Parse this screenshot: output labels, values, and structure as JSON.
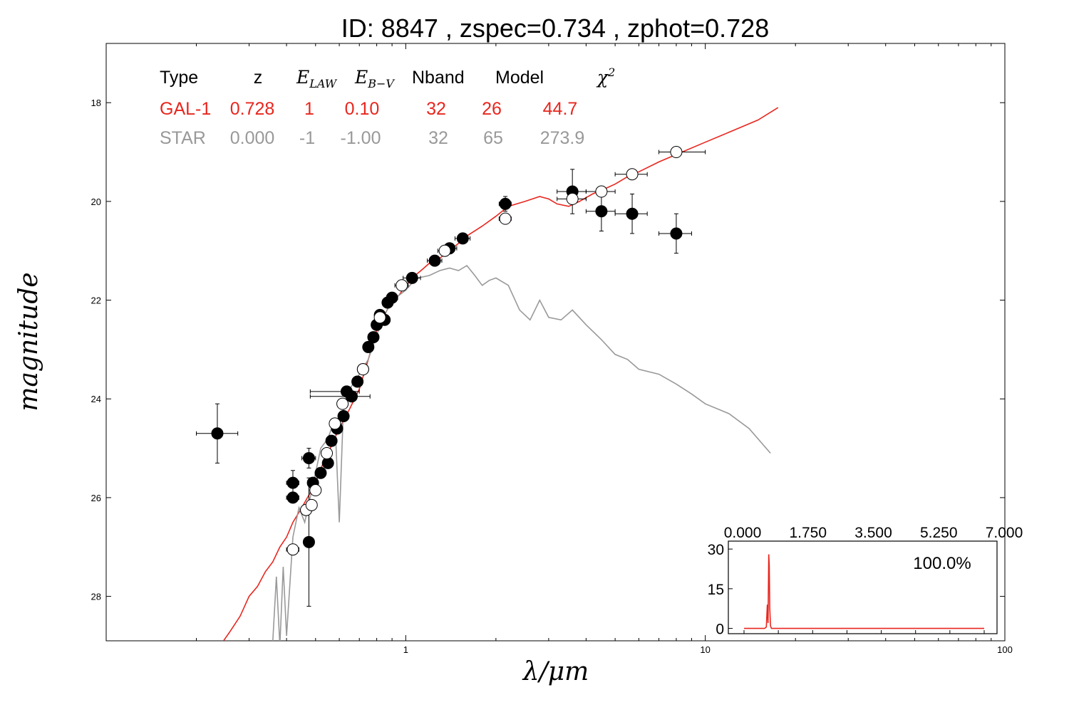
{
  "chart_data": {
    "type": "scatter",
    "title": "ID:  8847  , zspec=0.734 , zphot=0.728",
    "xlabel": "λ/μm",
    "ylabel": "magnitude",
    "xscale": "log",
    "xlim": [
      0.1,
      100
    ],
    "ylim": [
      28.9,
      16.8
    ],
    "y_inverted": true,
    "xticks": [
      1,
      10,
      100
    ],
    "xtick_labels": [
      "1",
      "10",
      "100"
    ],
    "yticks": [
      18,
      20,
      22,
      24,
      26,
      28
    ],
    "ytick_labels": [
      "18",
      "20",
      "22",
      "24",
      "26",
      "28"
    ],
    "table": {
      "headers": [
        "Type",
        "z",
        "E_LAW",
        "E_B−V",
        "Nband",
        "Model",
        "χ²"
      ],
      "rows": [
        {
          "type": "GAL-1",
          "z": "0.728",
          "elaw": "1",
          "ebv": "0.10",
          "nband": "32",
          "model": "26",
          "chi2": "44.7",
          "color": "#e8261e"
        },
        {
          "type": "STAR",
          "z": "0.000",
          "elaw": "-1",
          "ebv": "-1.00",
          "nband": "32",
          "model": "65",
          "chi2": "273.9",
          "color": "#999999"
        }
      ]
    },
    "series": [
      {
        "name": "GAL-1",
        "kind": "line",
        "color": "#e8261e",
        "x": [
          0.24,
          0.26,
          0.28,
          0.3,
          0.32,
          0.34,
          0.36,
          0.38,
          0.4,
          0.42,
          0.45,
          0.48,
          0.5,
          0.53,
          0.56,
          0.6,
          0.65,
          0.7,
          0.75,
          0.8,
          0.85,
          0.9,
          0.95,
          1.0,
          1.05,
          1.1,
          1.15,
          1.2,
          1.3,
          1.4,
          1.5,
          1.6,
          1.8,
          2.0,
          2.2,
          2.5,
          2.8,
          3.0,
          3.2,
          3.5,
          3.8,
          4.2,
          4.6,
          5.0,
          5.5,
          6.0,
          7.0,
          8.0,
          10.0,
          12.0,
          15.0,
          17.5
        ],
        "y": [
          29.0,
          28.7,
          28.4,
          28.0,
          27.8,
          27.5,
          27.3,
          27.0,
          26.8,
          26.5,
          26.2,
          25.9,
          25.7,
          25.3,
          25.0,
          24.6,
          24.2,
          23.8,
          23.2,
          22.6,
          22.3,
          22.0,
          21.9,
          21.7,
          21.55,
          21.45,
          21.35,
          21.25,
          21.15,
          21.0,
          20.85,
          20.7,
          20.5,
          20.3,
          20.1,
          20.0,
          19.9,
          19.95,
          20.05,
          20.1,
          20.0,
          19.85,
          19.75,
          19.65,
          19.5,
          19.4,
          19.2,
          19.05,
          18.8,
          18.6,
          18.35,
          18.1
        ]
      },
      {
        "name": "STAR",
        "kind": "line",
        "color": "#999999",
        "x": [
          0.36,
          0.37,
          0.38,
          0.39,
          0.4,
          0.42,
          0.44,
          0.46,
          0.48,
          0.5,
          0.52,
          0.55,
          0.58,
          0.6,
          0.62,
          0.65,
          0.7,
          0.75,
          0.8,
          0.85,
          0.9,
          0.95,
          1.0,
          1.05,
          1.1,
          1.2,
          1.3,
          1.4,
          1.5,
          1.6,
          1.7,
          1.8,
          1.9,
          2.0,
          2.2,
          2.4,
          2.6,
          2.8,
          3.0,
          3.3,
          3.6,
          4.0,
          4.5,
          5.0,
          5.5,
          6.0,
          7.0,
          8.0,
          9.0,
          10.0,
          12.0,
          14.0,
          16.5
        ],
        "y": [
          28.9,
          27.6,
          29.0,
          27.4,
          28.8,
          26.8,
          26.2,
          26.5,
          26.0,
          25.5,
          25.0,
          24.8,
          24.4,
          26.5,
          24.1,
          23.8,
          23.5,
          23.2,
          22.7,
          22.3,
          22.0,
          21.9,
          21.8,
          21.65,
          21.55,
          21.5,
          21.4,
          21.35,
          21.4,
          21.3,
          21.5,
          21.7,
          21.6,
          21.55,
          21.7,
          22.2,
          22.4,
          22.0,
          22.35,
          22.4,
          22.2,
          22.5,
          22.8,
          23.1,
          23.2,
          23.4,
          23.5,
          23.7,
          23.9,
          24.1,
          24.3,
          24.6,
          25.1
        ]
      },
      {
        "name": "observed",
        "kind": "points",
        "fill": "black",
        "points": [
          {
            "x": 0.235,
            "y": 24.7,
            "xerr": [
              0.2,
              0.275
            ],
            "yerr": 0.6
          },
          {
            "x": 0.42,
            "y": 25.7,
            "xerr": [
              0.4,
              0.44
            ],
            "yerr": 0.25
          },
          {
            "x": 0.42,
            "y": 26.0,
            "xerr": [
              0.4,
              0.44
            ],
            "yerr": 0.1
          },
          {
            "x": 0.475,
            "y": 25.2,
            "xerr": [
              0.45,
              0.5
            ],
            "yerr": 0.2
          },
          {
            "x": 0.475,
            "y": 26.9,
            "xerr": [
              0.46,
              0.49
            ],
            "yerr": 1.3
          },
          {
            "x": 0.49,
            "y": 25.7,
            "xerr": [
              0.47,
              0.51
            ],
            "yerr": 0.1
          },
          {
            "x": 0.52,
            "y": 25.5,
            "xerr": [
              0.5,
              0.54
            ],
            "yerr": 0.1
          },
          {
            "x": 0.55,
            "y": 25.3,
            "xerr": [
              0.53,
              0.57
            ],
            "yerr": 0.1
          },
          {
            "x": 0.565,
            "y": 24.85,
            "xerr": [
              0.55,
              0.58
            ],
            "yerr": 0.08
          },
          {
            "x": 0.59,
            "y": 24.6,
            "xerr": [
              0.57,
              0.61
            ],
            "yerr": 0.08
          },
          {
            "x": 0.62,
            "y": 24.35,
            "xerr": [
              0.6,
              0.64
            ],
            "yerr": 0.08
          },
          {
            "x": 0.635,
            "y": 23.85,
            "xerr": [
              0.48,
              0.7
            ],
            "yerr": 0.1
          },
          {
            "x": 0.66,
            "y": 23.95,
            "xerr": [
              0.48,
              0.76
            ],
            "yerr": 0.1
          },
          {
            "x": 0.69,
            "y": 23.65,
            "xerr": [
              0.67,
              0.71
            ],
            "yerr": 0.08
          },
          {
            "x": 0.72,
            "y": 23.4,
            "xerr": [
              0.7,
              0.74
            ],
            "yerr": 0.08
          },
          {
            "x": 0.75,
            "y": 22.95,
            "xerr": [
              0.73,
              0.77
            ],
            "yerr": 0.08
          },
          {
            "x": 0.78,
            "y": 22.75,
            "xerr": [
              0.76,
              0.8
            ],
            "yerr": 0.08
          },
          {
            "x": 0.8,
            "y": 22.5,
            "xerr": [
              0.77,
              0.83
            ],
            "yerr": 0.08
          },
          {
            "x": 0.82,
            "y": 22.3,
            "xerr": [
              0.79,
              0.85
            ],
            "yerr": 0.08
          },
          {
            "x": 0.85,
            "y": 22.4,
            "xerr": [
              0.82,
              0.88
            ],
            "yerr": 0.08
          },
          {
            "x": 0.87,
            "y": 22.05,
            "xerr": [
              0.84,
              0.9
            ],
            "yerr": 0.08
          },
          {
            "x": 0.9,
            "y": 21.95,
            "xerr": [
              0.87,
              0.94
            ],
            "yerr": 0.08
          },
          {
            "x": 1.05,
            "y": 21.55,
            "xerr": [
              0.98,
              1.12
            ],
            "yerr": 0.08
          },
          {
            "x": 1.25,
            "y": 21.2,
            "xerr": [
              1.18,
              1.32
            ],
            "yerr": 0.08
          },
          {
            "x": 1.4,
            "y": 20.95,
            "xerr": [
              1.32,
              1.48
            ],
            "yerr": 0.08
          },
          {
            "x": 1.55,
            "y": 20.75,
            "xerr": [
              1.46,
              1.64
            ],
            "yerr": 0.08
          },
          {
            "x": 2.15,
            "y": 20.05,
            "xerr": [
              2.05,
              2.25
            ],
            "yerr": 0.15
          },
          {
            "x": 3.6,
            "y": 19.8,
            "xerr": [
              3.2,
              4.0
            ],
            "yerr": 0.45
          },
          {
            "x": 4.5,
            "y": 20.2,
            "xerr": [
              4.0,
              5.0
            ],
            "yerr": 0.4
          },
          {
            "x": 5.7,
            "y": 20.25,
            "xerr": [
              5.0,
              6.4
            ],
            "yerr": 0.4
          },
          {
            "x": 8.0,
            "y": 20.65,
            "xerr": [
              7.0,
              9.0
            ],
            "yerr": 0.4
          }
        ]
      },
      {
        "name": "model",
        "kind": "points",
        "fill": "white",
        "points": [
          {
            "x": 0.42,
            "y": 27.05,
            "xerr": [
              0.4,
              0.44
            ],
            "yerr": 0.0
          },
          {
            "x": 0.465,
            "y": 26.25,
            "xerr": [
              0.45,
              0.48
            ],
            "yerr": 0.0
          },
          {
            "x": 0.485,
            "y": 26.15,
            "xerr": [
              0.47,
              0.5
            ],
            "yerr": 0.0
          },
          {
            "x": 0.5,
            "y": 25.85,
            "xerr": [
              0.49,
              0.51
            ],
            "yerr": 0.0
          },
          {
            "x": 0.545,
            "y": 25.1,
            "xerr": [
              0.53,
              0.56
            ],
            "yerr": 0.0
          },
          {
            "x": 0.58,
            "y": 24.5,
            "xerr": [
              0.56,
              0.6
            ],
            "yerr": 0.0
          },
          {
            "x": 0.615,
            "y": 24.1,
            "xerr": [
              0.6,
              0.63
            ],
            "yerr": 0.0
          },
          {
            "x": 0.72,
            "y": 23.4,
            "xerr": [
              0.7,
              0.74
            ],
            "yerr": 0.0
          },
          {
            "x": 0.82,
            "y": 22.35,
            "xerr": [
              0.8,
              0.84
            ],
            "yerr": 0.0
          },
          {
            "x": 0.97,
            "y": 21.7,
            "xerr": [
              0.92,
              1.02
            ],
            "yerr": 0.0
          },
          {
            "x": 1.35,
            "y": 21.0,
            "xerr": [
              1.28,
              1.42
            ],
            "yerr": 0.0
          },
          {
            "x": 2.15,
            "y": 20.35,
            "xerr": [
              2.05,
              2.25
            ],
            "yerr": 0.0
          },
          {
            "x": 3.6,
            "y": 19.95,
            "xerr": [
              3.2,
              4.0
            ],
            "yerr": 0.0
          },
          {
            "x": 4.5,
            "y": 19.8,
            "xerr": [
              4.0,
              5.0
            ],
            "yerr": 0.0
          },
          {
            "x": 5.7,
            "y": 19.45,
            "xerr": [
              5.0,
              6.4
            ],
            "yerr": 0.0
          },
          {
            "x": 8.0,
            "y": 19.0,
            "xerr": [
              7.0,
              10.0
            ],
            "yerr": 0.0
          }
        ]
      }
    ],
    "inset": {
      "type": "line",
      "xlim": [
        0.0,
        7.0
      ],
      "ylim": [
        -2,
        33
      ],
      "xtick_labels": [
        "0.000",
        "1.750",
        "3.500",
        "5.250",
        "7.000"
      ],
      "ytick_labels": [
        "30",
        "15",
        "0"
      ],
      "yticks": [
        30,
        15,
        0
      ],
      "annotation": "100.0%",
      "color": "#e8261e",
      "x": [
        0.0,
        0.6,
        0.65,
        0.68,
        0.7,
        0.72,
        0.735,
        0.75,
        0.77,
        0.8,
        0.85,
        7.0
      ],
      "y": [
        0,
        0,
        0.5,
        9,
        2,
        28,
        24,
        8,
        1,
        0,
        0,
        0
      ]
    }
  }
}
